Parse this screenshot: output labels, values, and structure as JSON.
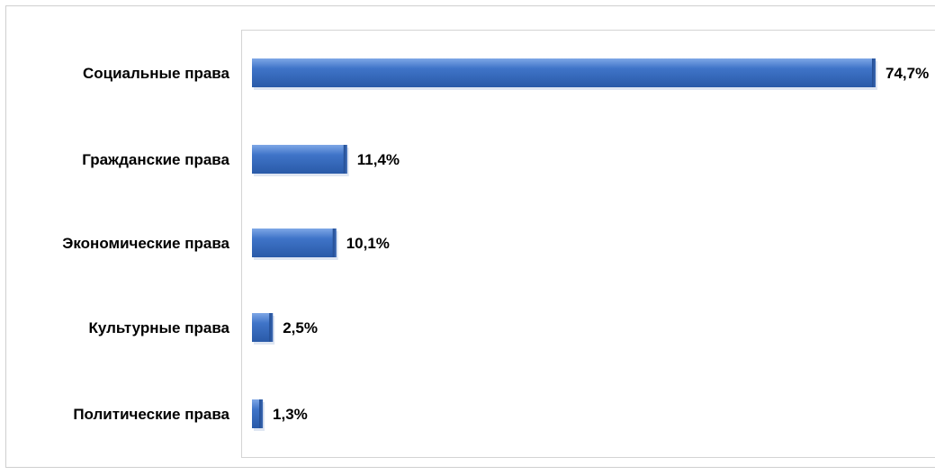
{
  "chart_data": {
    "type": "bar",
    "orientation": "horizontal",
    "categories": [
      "Социальные права",
      "Гражданские права",
      "Экономические права",
      "Культурные права",
      "Политические права"
    ],
    "values": [
      74.7,
      11.4,
      10.1,
      2.5,
      1.3
    ],
    "value_labels": [
      "74,7%",
      "11,4%",
      "10,1%",
      "2,5%",
      "1,3%"
    ],
    "unit": "%",
    "xlim": [
      0,
      75
    ],
    "grid": false,
    "legend": "none",
    "colors": {
      "bar_main": "#3a6fc4",
      "bar_light": "#6f9be0",
      "bar_dark": "#1f4f9e"
    }
  }
}
